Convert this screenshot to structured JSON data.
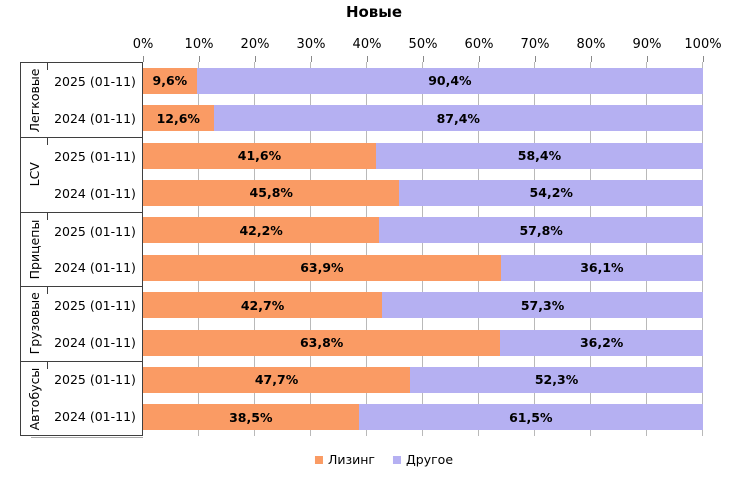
{
  "title": "Новые",
  "chart_data": {
    "type": "bar",
    "orientation": "horizontal",
    "stacked": true,
    "title": "Новые",
    "x_axis": {
      "position": "top",
      "min": 0,
      "max": 100,
      "tick_labels": [
        "0%",
        "10%",
        "20%",
        "30%",
        "40%",
        "50%",
        "60%",
        "70%",
        "80%",
        "90%",
        "100%"
      ]
    },
    "legend": {
      "position": "bottom",
      "items": [
        {
          "label": "Лизинг",
          "series_key": "leasing",
          "color": "#fa9b64"
        },
        {
          "label": "Другое",
          "series_key": "other",
          "color": "#b5b0f2"
        }
      ]
    },
    "groups": [
      {
        "category": "Легковые",
        "rows": [
          {
            "period": "2025 (01-11)",
            "values": [
              9.6,
              90.4
            ],
            "labels": [
              "9,6%",
              "90,4%"
            ]
          },
          {
            "period": "2024 (01-11)",
            "values": [
              12.6,
              87.4
            ],
            "labels": [
              "12,6%",
              "87,4%"
            ]
          }
        ]
      },
      {
        "category": "LCV",
        "rows": [
          {
            "period": "2025 (01-11)",
            "values": [
              41.6,
              58.4
            ],
            "labels": [
              "41,6%",
              "58,4%"
            ]
          },
          {
            "period": "2024 (01-11)",
            "values": [
              45.8,
              54.2
            ],
            "labels": [
              "45,8%",
              "54,2%"
            ]
          }
        ]
      },
      {
        "category": "Прицепы",
        "rows": [
          {
            "period": "2025 (01-11)",
            "values": [
              42.2,
              57.8
            ],
            "labels": [
              "42,2%",
              "57,8%"
            ]
          },
          {
            "period": "2024 (01-11)",
            "values": [
              63.9,
              36.1
            ],
            "labels": [
              "63,9%",
              "36,1%"
            ]
          }
        ]
      },
      {
        "category": "Грузовые",
        "rows": [
          {
            "period": "2025 (01-11)",
            "values": [
              42.7,
              57.3
            ],
            "labels": [
              "42,7%",
              "57,3%"
            ]
          },
          {
            "period": "2024 (01-11)",
            "values": [
              63.8,
              36.2
            ],
            "labels": [
              "63,8%",
              "36,2%"
            ]
          }
        ]
      },
      {
        "category": "Автобусы",
        "rows": [
          {
            "period": "2025 (01-11)",
            "values": [
              47.7,
              52.3
            ],
            "labels": [
              "47,7%",
              "52,3%"
            ]
          },
          {
            "period": "2024 (01-11)",
            "values": [
              38.5,
              61.5
            ],
            "labels": [
              "38,5%",
              "61,5%"
            ]
          }
        ]
      }
    ],
    "colors": {
      "leasing": "#fa9b64",
      "other": "#b5b0f2",
      "gridline": "#b9b9b9",
      "axis_border": "#3f3f3f"
    }
  }
}
